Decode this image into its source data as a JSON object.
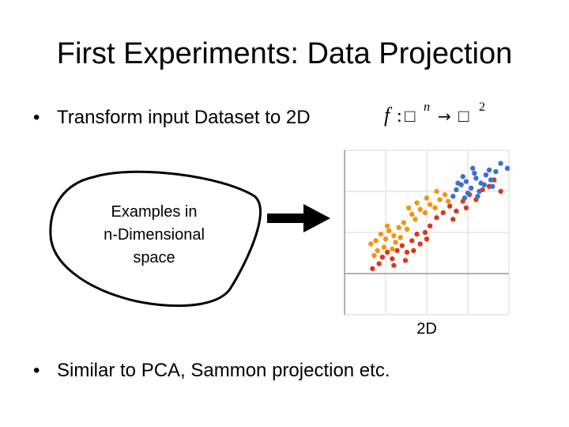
{
  "slide": {
    "title": "First Experiments: Data Projection",
    "bullets": [
      "Transform input Dataset to 2D",
      "Similar to PCA, Sammon projection etc."
    ],
    "bullet_symbol": "•"
  },
  "formula": {
    "func": "f",
    "colon": ":",
    "domain_glyph": "□",
    "domain_exp": "n",
    "arrow": "→",
    "codomain_glyph": "□",
    "codomain_exp": "2"
  },
  "diagram": {
    "blob_label": "Examples in\nn-Dimensional\nspace",
    "plot_caption": "2D",
    "colors": {
      "orange": "#f2940f",
      "red": "#d9381e",
      "blue": "#3b6fd1",
      "grid": "#d9d9d9",
      "axis": "#999999"
    }
  },
  "chart_data": {
    "type": "scatter",
    "title": "",
    "xlabel": "",
    "ylabel": "",
    "xlim": [
      0,
      10
    ],
    "ylim": [
      0,
      10
    ],
    "grid": true,
    "series": [
      {
        "color": "orange",
        "points": [
          [
            1.6,
            4.3
          ],
          [
            1.9,
            4.5
          ],
          [
            2.2,
            4.9
          ],
          [
            2.5,
            4.6
          ],
          [
            2.7,
            5.1
          ],
          [
            3.0,
            4.8
          ],
          [
            3.3,
            5.3
          ],
          [
            3.1,
            4.4
          ],
          [
            2.4,
            4.1
          ],
          [
            3.6,
            5.6
          ],
          [
            3.8,
            5.2
          ],
          [
            4.1,
            6.1
          ],
          [
            4.3,
            5.8
          ],
          [
            4.6,
            6.4
          ],
          [
            4.9,
            6.2
          ],
          [
            5.2,
            6.7
          ],
          [
            5.5,
            6.5
          ],
          [
            5.8,
            7.0
          ],
          [
            6.1,
            7.3
          ],
          [
            6.3,
            6.9
          ],
          [
            2.0,
            3.9
          ],
          [
            2.9,
            4.0
          ],
          [
            3.4,
            4.7
          ],
          [
            4.4,
            6.8
          ],
          [
            5.0,
            7.1
          ],
          [
            5.6,
            7.5
          ],
          [
            3.9,
            6.5
          ],
          [
            1.8,
            3.6
          ],
          [
            2.6,
            5.4
          ]
        ]
      },
      {
        "color": "red",
        "points": [
          [
            2.3,
            3.5
          ],
          [
            2.6,
            3.8
          ],
          [
            2.9,
            3.4
          ],
          [
            3.2,
            3.9
          ],
          [
            3.5,
            4.2
          ],
          [
            3.8,
            3.8
          ],
          [
            4.1,
            4.5
          ],
          [
            4.4,
            4.9
          ],
          [
            4.6,
            4.3
          ],
          [
            4.9,
            5.0
          ],
          [
            5.2,
            5.4
          ],
          [
            5.6,
            5.9
          ],
          [
            6.0,
            6.2
          ],
          [
            6.4,
            6.6
          ],
          [
            6.8,
            6.3
          ],
          [
            7.2,
            6.9
          ],
          [
            7.6,
            7.3
          ],
          [
            8.0,
            7.0
          ],
          [
            8.4,
            7.6
          ],
          [
            8.8,
            7.8
          ],
          [
            9.1,
            8.2
          ],
          [
            9.5,
            7.5
          ],
          [
            2.1,
            3.1
          ],
          [
            3.0,
            3.0
          ],
          [
            3.7,
            3.3
          ],
          [
            4.2,
            3.9
          ],
          [
            5.0,
            4.6
          ],
          [
            6.6,
            5.8
          ],
          [
            7.4,
            6.5
          ],
          [
            1.7,
            2.8
          ]
        ]
      },
      {
        "color": "blue",
        "points": [
          [
            6.8,
            7.6
          ],
          [
            7.1,
            7.9
          ],
          [
            7.4,
            8.1
          ],
          [
            7.7,
            7.7
          ],
          [
            8.0,
            8.3
          ],
          [
            8.3,
            8.0
          ],
          [
            8.6,
            8.5
          ],
          [
            8.9,
            8.2
          ],
          [
            9.2,
            8.7
          ],
          [
            7.5,
            7.4
          ],
          [
            7.9,
            8.6
          ],
          [
            8.2,
            7.5
          ],
          [
            8.5,
            7.9
          ],
          [
            7.2,
            8.4
          ],
          [
            6.9,
            8.0
          ],
          [
            8.8,
            8.8
          ],
          [
            9.5,
            9.2
          ],
          [
            9.9,
            8.9
          ],
          [
            7.8,
            8.9
          ],
          [
            6.6,
            7.2
          ],
          [
            8.1,
            7.2
          ],
          [
            9.0,
            7.8
          ],
          [
            7.3,
            7.1
          ]
        ]
      }
    ]
  }
}
